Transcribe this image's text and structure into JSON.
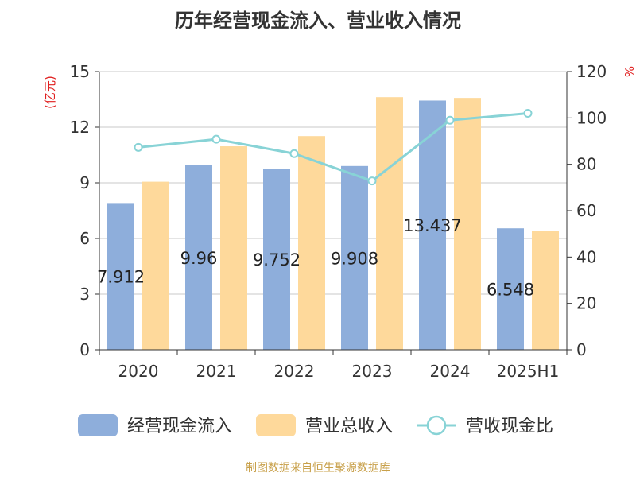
{
  "chart_data": {
    "type": "bar",
    "title": "历年经营现金流入、营业收入情况",
    "categories": [
      "2020",
      "2021",
      "2022",
      "2023",
      "2024",
      "2025H1"
    ],
    "y_left_label": "(亿元)",
    "y_right_label": "%",
    "y_left_range": [
      0,
      15
    ],
    "y_left_ticks": [
      "0",
      "3",
      "6",
      "9",
      "12",
      "15"
    ],
    "y_right_range": [
      0,
      120
    ],
    "y_right_ticks": [
      "0",
      "20",
      "40",
      "60",
      "80",
      "100",
      "120"
    ],
    "grid": true,
    "legend_position": "bottom",
    "series": [
      {
        "name": "经营现金流入",
        "type": "bar",
        "axis": "left",
        "color": "#8eaedb",
        "values": [
          7.912,
          9.96,
          9.752,
          9.908,
          13.437,
          6.548
        ],
        "labels": [
          "7.912",
          "9.96",
          "9.752",
          "9.908",
          "13.437",
          "6.548"
        ]
      },
      {
        "name": "营业总收入",
        "type": "bar",
        "axis": "left",
        "color": "#fed99b",
        "values": [
          9.06,
          10.97,
          11.52,
          13.62,
          13.58,
          6.42
        ]
      },
      {
        "name": "营收现金比",
        "type": "line",
        "axis": "right",
        "color": "#88d3d6",
        "values": [
          87.3,
          90.8,
          84.6,
          72.8,
          99.0,
          102.0
        ]
      }
    ]
  },
  "footer": {
    "source": "制图数据来自恒生聚源数据库",
    "source_color": "#c8a04a"
  }
}
